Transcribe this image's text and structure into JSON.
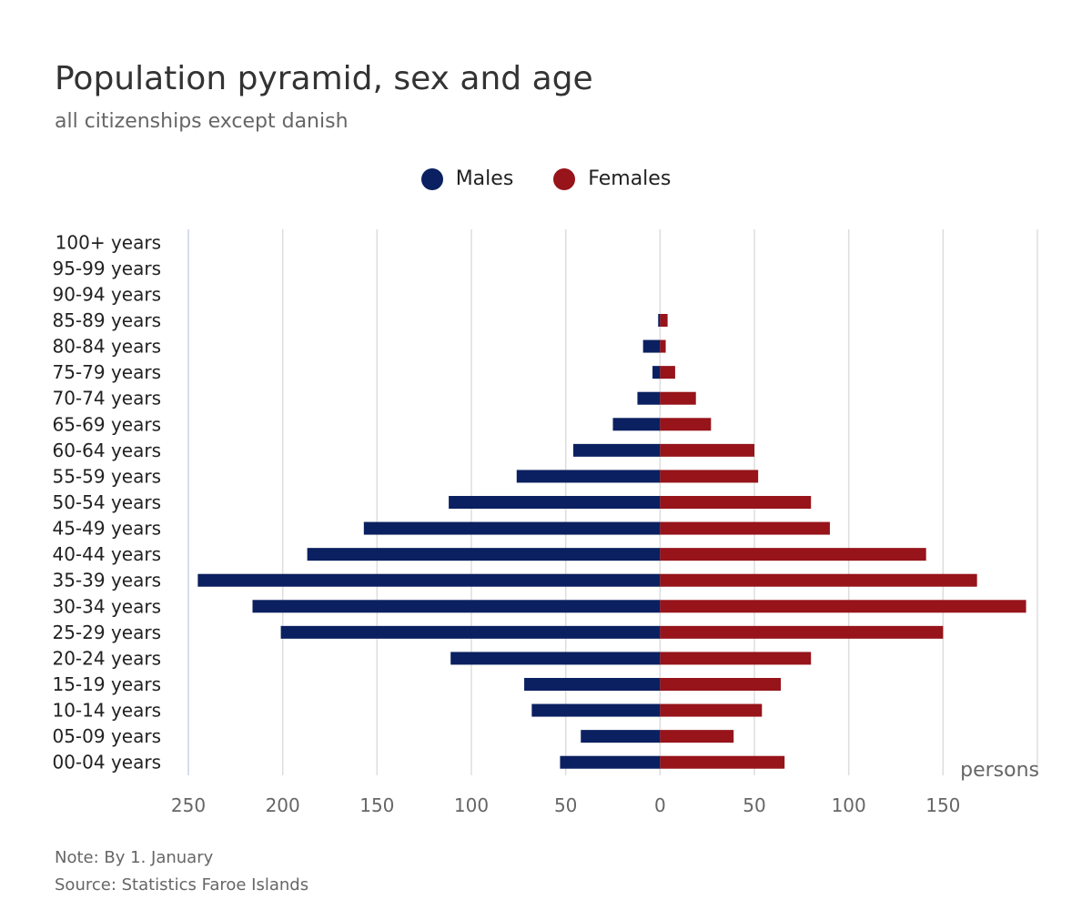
{
  "colors": {
    "males": "#0b2060",
    "females": "#96141a",
    "grid": "#dddddd",
    "axis_text": "#666666",
    "label_text": "#222222"
  },
  "legend": {
    "males": "Males",
    "females": "Females"
  },
  "chart_data": {
    "type": "bar",
    "orientation": "horizontal-pyramid",
    "title": "Population pyramid, sex and age",
    "subtitle": "all citizenships except danish",
    "unit_label": "persons",
    "categories": [
      "00-04 years",
      "05-09 years",
      "10-14 years",
      "15-19 years",
      "20-24 years",
      "25-29 years",
      "30-34 years",
      "35-39 years",
      "40-44 years",
      "45-49 years",
      "50-54 years",
      "55-59 years",
      "60-64 years",
      "65-69 years",
      "70-74 years",
      "75-79 years",
      "80-84 years",
      "85-89 years",
      "90-94 years",
      "95-99 years",
      "100+ years"
    ],
    "series": [
      {
        "name": "Males",
        "values": [
          53,
          42,
          68,
          72,
          111,
          201,
          216,
          245,
          187,
          157,
          112,
          76,
          46,
          25,
          12,
          4,
          9,
          1,
          0,
          0,
          0
        ]
      },
      {
        "name": "Females",
        "values": [
          66,
          39,
          54,
          64,
          80,
          150,
          194,
          168,
          141,
          90,
          80,
          52,
          50,
          27,
          19,
          8,
          3,
          4,
          0,
          0,
          0
        ]
      }
    ],
    "xlim": [
      -250,
      200
    ],
    "xticks": [
      -250,
      -200,
      -150,
      -100,
      -50,
      0,
      50,
      100,
      150
    ],
    "xtick_labels": [
      "250",
      "200",
      "150",
      "100",
      "50",
      "0",
      "50",
      "100",
      "150"
    ]
  },
  "footer": {
    "note": "Note: By 1. January",
    "source": "Source: Statistics Faroe Islands"
  }
}
